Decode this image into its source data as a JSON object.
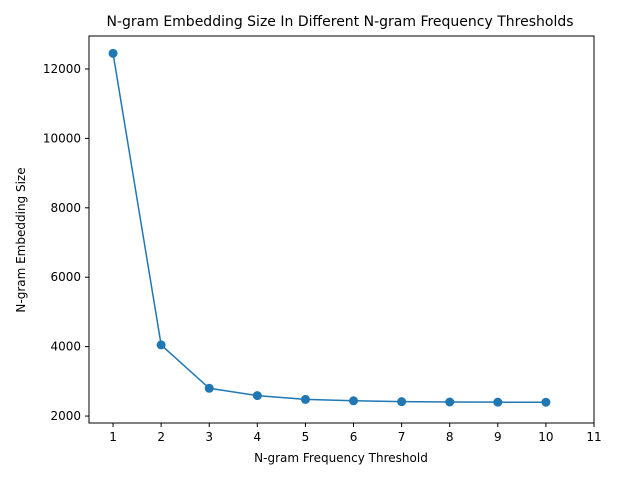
{
  "chart_data": {
    "type": "line",
    "title": "N-gram Embedding Size In Different N-gram Frequency Thresholds",
    "xlabel": "N-gram Frequency Threshold",
    "ylabel": "N-gram Embedding Size",
    "x": [
      1,
      2,
      3,
      4,
      5,
      6,
      7,
      8,
      9,
      10
    ],
    "series": [
      {
        "values": [
          12450,
          4050,
          2800,
          2590,
          2480,
          2440,
          2415,
          2405,
          2400,
          2398
        ],
        "color": "#1f77b4",
        "marker": "circle"
      }
    ],
    "xticks": [
      1,
      2,
      3,
      4,
      5,
      6,
      7,
      8,
      9,
      10,
      11
    ],
    "yticks": [
      2000,
      4000,
      6000,
      8000,
      10000,
      12000
    ],
    "xlim": [
      0.5,
      11
    ],
    "ylim": [
      1800,
      12950
    ],
    "grid": false,
    "legend": "none"
  }
}
